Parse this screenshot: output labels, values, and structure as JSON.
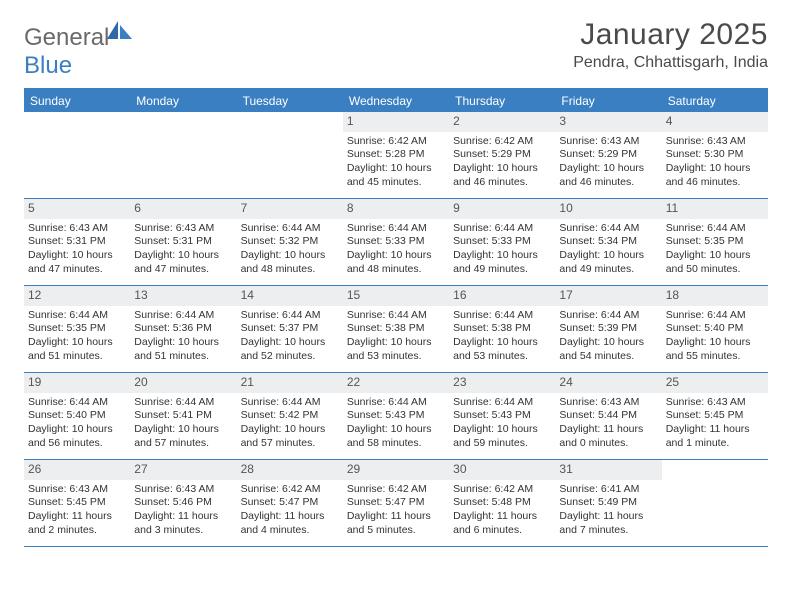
{
  "colors": {
    "accent": "#3a7fc2",
    "header_bg": "#3a7fc2",
    "daynum_bg": "#eceeef",
    "text": "#333333",
    "title": "#4a4a4a",
    "logo_gray": "#6a6a6a"
  },
  "logo": {
    "part1": "General",
    "part2": "Blue"
  },
  "title": "January 2025",
  "location": "Pendra, Chhattisgarh, India",
  "dayNames": [
    "Sunday",
    "Monday",
    "Tuesday",
    "Wednesday",
    "Thursday",
    "Friday",
    "Saturday"
  ],
  "weeks": [
    [
      {
        "n": "",
        "sr": "",
        "ss": "",
        "dl": ""
      },
      {
        "n": "",
        "sr": "",
        "ss": "",
        "dl": ""
      },
      {
        "n": "",
        "sr": "",
        "ss": "",
        "dl": ""
      },
      {
        "n": "1",
        "sr": "Sunrise: 6:42 AM",
        "ss": "Sunset: 5:28 PM",
        "dl": "Daylight: 10 hours and 45 minutes."
      },
      {
        "n": "2",
        "sr": "Sunrise: 6:42 AM",
        "ss": "Sunset: 5:29 PM",
        "dl": "Daylight: 10 hours and 46 minutes."
      },
      {
        "n": "3",
        "sr": "Sunrise: 6:43 AM",
        "ss": "Sunset: 5:29 PM",
        "dl": "Daylight: 10 hours and 46 minutes."
      },
      {
        "n": "4",
        "sr": "Sunrise: 6:43 AM",
        "ss": "Sunset: 5:30 PM",
        "dl": "Daylight: 10 hours and 46 minutes."
      }
    ],
    [
      {
        "n": "5",
        "sr": "Sunrise: 6:43 AM",
        "ss": "Sunset: 5:31 PM",
        "dl": "Daylight: 10 hours and 47 minutes."
      },
      {
        "n": "6",
        "sr": "Sunrise: 6:43 AM",
        "ss": "Sunset: 5:31 PM",
        "dl": "Daylight: 10 hours and 47 minutes."
      },
      {
        "n": "7",
        "sr": "Sunrise: 6:44 AM",
        "ss": "Sunset: 5:32 PM",
        "dl": "Daylight: 10 hours and 48 minutes."
      },
      {
        "n": "8",
        "sr": "Sunrise: 6:44 AM",
        "ss": "Sunset: 5:33 PM",
        "dl": "Daylight: 10 hours and 48 minutes."
      },
      {
        "n": "9",
        "sr": "Sunrise: 6:44 AM",
        "ss": "Sunset: 5:33 PM",
        "dl": "Daylight: 10 hours and 49 minutes."
      },
      {
        "n": "10",
        "sr": "Sunrise: 6:44 AM",
        "ss": "Sunset: 5:34 PM",
        "dl": "Daylight: 10 hours and 49 minutes."
      },
      {
        "n": "11",
        "sr": "Sunrise: 6:44 AM",
        "ss": "Sunset: 5:35 PM",
        "dl": "Daylight: 10 hours and 50 minutes."
      }
    ],
    [
      {
        "n": "12",
        "sr": "Sunrise: 6:44 AM",
        "ss": "Sunset: 5:35 PM",
        "dl": "Daylight: 10 hours and 51 minutes."
      },
      {
        "n": "13",
        "sr": "Sunrise: 6:44 AM",
        "ss": "Sunset: 5:36 PM",
        "dl": "Daylight: 10 hours and 51 minutes."
      },
      {
        "n": "14",
        "sr": "Sunrise: 6:44 AM",
        "ss": "Sunset: 5:37 PM",
        "dl": "Daylight: 10 hours and 52 minutes."
      },
      {
        "n": "15",
        "sr": "Sunrise: 6:44 AM",
        "ss": "Sunset: 5:38 PM",
        "dl": "Daylight: 10 hours and 53 minutes."
      },
      {
        "n": "16",
        "sr": "Sunrise: 6:44 AM",
        "ss": "Sunset: 5:38 PM",
        "dl": "Daylight: 10 hours and 53 minutes."
      },
      {
        "n": "17",
        "sr": "Sunrise: 6:44 AM",
        "ss": "Sunset: 5:39 PM",
        "dl": "Daylight: 10 hours and 54 minutes."
      },
      {
        "n": "18",
        "sr": "Sunrise: 6:44 AM",
        "ss": "Sunset: 5:40 PM",
        "dl": "Daylight: 10 hours and 55 minutes."
      }
    ],
    [
      {
        "n": "19",
        "sr": "Sunrise: 6:44 AM",
        "ss": "Sunset: 5:40 PM",
        "dl": "Daylight: 10 hours and 56 minutes."
      },
      {
        "n": "20",
        "sr": "Sunrise: 6:44 AM",
        "ss": "Sunset: 5:41 PM",
        "dl": "Daylight: 10 hours and 57 minutes."
      },
      {
        "n": "21",
        "sr": "Sunrise: 6:44 AM",
        "ss": "Sunset: 5:42 PM",
        "dl": "Daylight: 10 hours and 57 minutes."
      },
      {
        "n": "22",
        "sr": "Sunrise: 6:44 AM",
        "ss": "Sunset: 5:43 PM",
        "dl": "Daylight: 10 hours and 58 minutes."
      },
      {
        "n": "23",
        "sr": "Sunrise: 6:44 AM",
        "ss": "Sunset: 5:43 PM",
        "dl": "Daylight: 10 hours and 59 minutes."
      },
      {
        "n": "24",
        "sr": "Sunrise: 6:43 AM",
        "ss": "Sunset: 5:44 PM",
        "dl": "Daylight: 11 hours and 0 minutes."
      },
      {
        "n": "25",
        "sr": "Sunrise: 6:43 AM",
        "ss": "Sunset: 5:45 PM",
        "dl": "Daylight: 11 hours and 1 minute."
      }
    ],
    [
      {
        "n": "26",
        "sr": "Sunrise: 6:43 AM",
        "ss": "Sunset: 5:45 PM",
        "dl": "Daylight: 11 hours and 2 minutes."
      },
      {
        "n": "27",
        "sr": "Sunrise: 6:43 AM",
        "ss": "Sunset: 5:46 PM",
        "dl": "Daylight: 11 hours and 3 minutes."
      },
      {
        "n": "28",
        "sr": "Sunrise: 6:42 AM",
        "ss": "Sunset: 5:47 PM",
        "dl": "Daylight: 11 hours and 4 minutes."
      },
      {
        "n": "29",
        "sr": "Sunrise: 6:42 AM",
        "ss": "Sunset: 5:47 PM",
        "dl": "Daylight: 11 hours and 5 minutes."
      },
      {
        "n": "30",
        "sr": "Sunrise: 6:42 AM",
        "ss": "Sunset: 5:48 PM",
        "dl": "Daylight: 11 hours and 6 minutes."
      },
      {
        "n": "31",
        "sr": "Sunrise: 6:41 AM",
        "ss": "Sunset: 5:49 PM",
        "dl": "Daylight: 11 hours and 7 minutes."
      },
      {
        "n": "",
        "sr": "",
        "ss": "",
        "dl": ""
      }
    ]
  ]
}
